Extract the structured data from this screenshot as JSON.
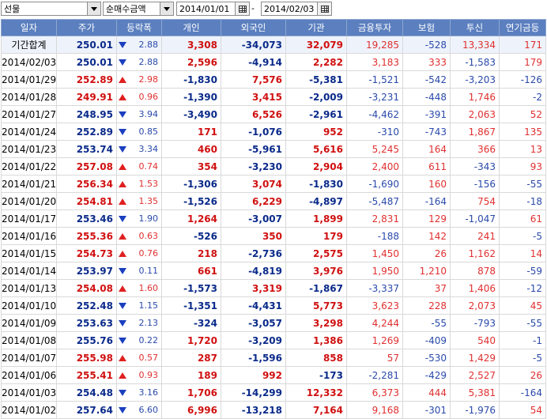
{
  "toolbar": {
    "market": "선물",
    "measure": "순매수금액",
    "date_from": "2014/01/01",
    "date_to": "2014/02/03",
    "separator": "-"
  },
  "colors": {
    "header_bg": "#5b7fbf",
    "up": "#d01010",
    "down": "#0a2a8a"
  },
  "columns": [
    "일자",
    "주가",
    "등락폭",
    "개인",
    "외국인",
    "기관",
    "금융투자",
    "보험",
    "투신",
    "연기금등"
  ],
  "rows": [
    {
      "date": "기간합계",
      "price": "250.01",
      "dir": "down",
      "chg": "2.88",
      "indiv": "3,308",
      "foreign": "-34,073",
      "inst": "32,079",
      "fin": "19,285",
      "ins": "-528",
      "trust": "13,334",
      "pension": "171"
    },
    {
      "date": "2014/02/03",
      "price": "250.01",
      "dir": "down",
      "chg": "2.88",
      "indiv": "2,596",
      "foreign": "-4,914",
      "inst": "2,282",
      "fin": "3,183",
      "ins": "333",
      "trust": "-1,583",
      "pension": "179"
    },
    {
      "date": "2014/01/29",
      "price": "252.89",
      "dir": "up",
      "chg": "2.98",
      "indiv": "-1,830",
      "foreign": "7,576",
      "inst": "-5,381",
      "fin": "-1,521",
      "ins": "-542",
      "trust": "-3,203",
      "pension": "-126"
    },
    {
      "date": "2014/01/28",
      "price": "249.91",
      "dir": "up",
      "chg": "0.96",
      "indiv": "-1,390",
      "foreign": "3,415",
      "inst": "-2,009",
      "fin": "-3,231",
      "ins": "-448",
      "trust": "1,746",
      "pension": "-2"
    },
    {
      "date": "2014/01/27",
      "price": "248.95",
      "dir": "down",
      "chg": "3.94",
      "indiv": "-3,490",
      "foreign": "6,526",
      "inst": "-2,961",
      "fin": "-4,462",
      "ins": "-391",
      "trust": "2,063",
      "pension": "52"
    },
    {
      "date": "2014/01/24",
      "price": "252.89",
      "dir": "down",
      "chg": "0.85",
      "indiv": "171",
      "foreign": "-1,076",
      "inst": "952",
      "fin": "-310",
      "ins": "-743",
      "trust": "1,867",
      "pension": "135"
    },
    {
      "date": "2014/01/23",
      "price": "253.74",
      "dir": "down",
      "chg": "3.34",
      "indiv": "460",
      "foreign": "-5,961",
      "inst": "5,616",
      "fin": "5,245",
      "ins": "164",
      "trust": "366",
      "pension": "13"
    },
    {
      "date": "2014/01/22",
      "price": "257.08",
      "dir": "up",
      "chg": "0.74",
      "indiv": "354",
      "foreign": "-3,230",
      "inst": "2,904",
      "fin": "2,400",
      "ins": "611",
      "trust": "-343",
      "pension": "93"
    },
    {
      "date": "2014/01/21",
      "price": "256.34",
      "dir": "up",
      "chg": "1.53",
      "indiv": "-1,306",
      "foreign": "3,074",
      "inst": "-1,830",
      "fin": "-1,690",
      "ins": "160",
      "trust": "-156",
      "pension": "-55"
    },
    {
      "date": "2014/01/20",
      "price": "254.81",
      "dir": "up",
      "chg": "1.35",
      "indiv": "-1,526",
      "foreign": "6,229",
      "inst": "-4,897",
      "fin": "-5,487",
      "ins": "-164",
      "trust": "754",
      "pension": "-18"
    },
    {
      "date": "2014/01/17",
      "price": "253.46",
      "dir": "down",
      "chg": "1.90",
      "indiv": "1,264",
      "foreign": "-3,007",
      "inst": "1,899",
      "fin": "2,831",
      "ins": "129",
      "trust": "-1,047",
      "pension": "61"
    },
    {
      "date": "2014/01/16",
      "price": "255.36",
      "dir": "up",
      "chg": "0.63",
      "indiv": "-526",
      "foreign": "350",
      "inst": "179",
      "fin": "-188",
      "ins": "142",
      "trust": "241",
      "pension": "-5"
    },
    {
      "date": "2014/01/15",
      "price": "254.73",
      "dir": "up",
      "chg": "0.76",
      "indiv": "218",
      "foreign": "-2,736",
      "inst": "2,575",
      "fin": "1,450",
      "ins": "26",
      "trust": "1,162",
      "pension": "14"
    },
    {
      "date": "2014/01/14",
      "price": "253.97",
      "dir": "down",
      "chg": "0.11",
      "indiv": "661",
      "foreign": "-4,819",
      "inst": "3,976",
      "fin": "1,950",
      "ins": "1,210",
      "trust": "878",
      "pension": "-59"
    },
    {
      "date": "2014/01/13",
      "price": "254.08",
      "dir": "up",
      "chg": "1.60",
      "indiv": "-1,573",
      "foreign": "3,319",
      "inst": "-1,867",
      "fin": "-3,337",
      "ins": "37",
      "trust": "1,406",
      "pension": "-12"
    },
    {
      "date": "2014/01/10",
      "price": "252.48",
      "dir": "down",
      "chg": "1.15",
      "indiv": "-1,351",
      "foreign": "-4,431",
      "inst": "5,773",
      "fin": "3,623",
      "ins": "228",
      "trust": "2,073",
      "pension": "45"
    },
    {
      "date": "2014/01/09",
      "price": "253.63",
      "dir": "down",
      "chg": "2.13",
      "indiv": "-324",
      "foreign": "-3,057",
      "inst": "3,298",
      "fin": "4,244",
      "ins": "-55",
      "trust": "-793",
      "pension": "-55"
    },
    {
      "date": "2014/01/08",
      "price": "255.76",
      "dir": "down",
      "chg": "0.22",
      "indiv": "1,720",
      "foreign": "-3,209",
      "inst": "1,386",
      "fin": "1,269",
      "ins": "-409",
      "trust": "540",
      "pension": "-1"
    },
    {
      "date": "2014/01/07",
      "price": "255.98",
      "dir": "up",
      "chg": "0.57",
      "indiv": "287",
      "foreign": "-1,596",
      "inst": "858",
      "fin": "57",
      "ins": "-530",
      "trust": "1,429",
      "pension": "-5"
    },
    {
      "date": "2014/01/06",
      "price": "255.41",
      "dir": "up",
      "chg": "0.93",
      "indiv": "189",
      "foreign": "992",
      "inst": "-173",
      "fin": "-2,281",
      "ins": "-429",
      "trust": "2,527",
      "pension": "26"
    },
    {
      "date": "2014/01/03",
      "price": "254.48",
      "dir": "down",
      "chg": "3.16",
      "indiv": "1,706",
      "foreign": "-14,299",
      "inst": "12,332",
      "fin": "6,373",
      "ins": "444",
      "trust": "5,381",
      "pension": "-164"
    },
    {
      "date": "2014/01/02",
      "price": "257.64",
      "dir": "down",
      "chg": "6.60",
      "indiv": "6,996",
      "foreign": "-13,218",
      "inst": "7,164",
      "fin": "9,168",
      "ins": "-301",
      "trust": "-1,976",
      "pension": "54"
    }
  ]
}
